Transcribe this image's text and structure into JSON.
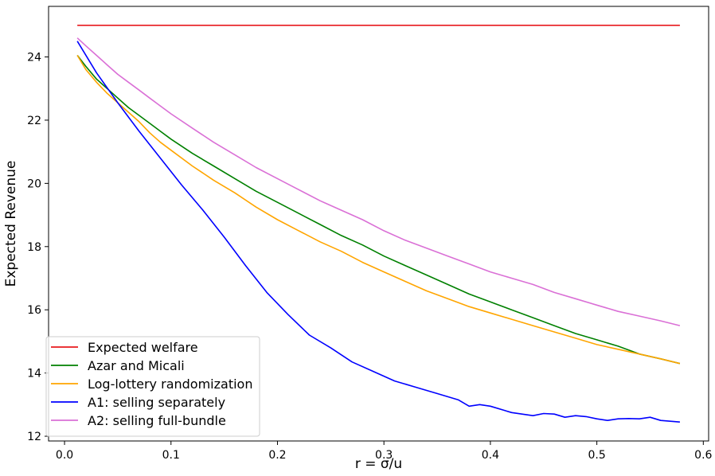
{
  "chart_data": {
    "type": "line",
    "title": "",
    "xlabel": "r = σ/u",
    "ylabel": "Expected Revenue",
    "xlim": [
      -0.015,
      0.605
    ],
    "ylim": [
      11.85,
      25.6
    ],
    "xticks": [
      0.0,
      0.1,
      0.2,
      0.3,
      0.4,
      0.5,
      0.6
    ],
    "xtick_labels": [
      "0.0",
      "0.1",
      "0.2",
      "0.3",
      "0.4",
      "0.5",
      "0.6"
    ],
    "yticks": [
      12,
      14,
      16,
      18,
      20,
      22,
      24
    ],
    "ytick_labels": [
      "12",
      "14",
      "16",
      "18",
      "20",
      "22",
      "24"
    ],
    "grid": false,
    "legend_position": "lower-left",
    "series": [
      {
        "name": "Expected welfare",
        "color": "#e8191d",
        "x": [
          0.012,
          0.578
        ],
        "y": [
          25.0,
          25.0
        ]
      },
      {
        "name": "Azar and Micali",
        "color": "#008000",
        "x": [
          0.012,
          0.02,
          0.03,
          0.04,
          0.05,
          0.06,
          0.07,
          0.08,
          0.09,
          0.1,
          0.12,
          0.14,
          0.16,
          0.18,
          0.2,
          0.22,
          0.24,
          0.26,
          0.28,
          0.3,
          0.32,
          0.34,
          0.36,
          0.38,
          0.4,
          0.42,
          0.44,
          0.46,
          0.48,
          0.5,
          0.52,
          0.54,
          0.56,
          0.578
        ],
        "y": [
          24.05,
          23.7,
          23.3,
          23.0,
          22.7,
          22.4,
          22.15,
          21.9,
          21.65,
          21.4,
          20.95,
          20.55,
          20.15,
          19.75,
          19.4,
          19.05,
          18.7,
          18.35,
          18.05,
          17.7,
          17.4,
          17.1,
          16.8,
          16.5,
          16.25,
          16.0,
          15.75,
          15.5,
          15.25,
          15.05,
          14.85,
          14.6,
          14.45,
          14.3
        ]
      },
      {
        "name": "Log-lottery randomization",
        "color": "#ffa500",
        "x": [
          0.012,
          0.02,
          0.03,
          0.04,
          0.05,
          0.06,
          0.07,
          0.08,
          0.09,
          0.1,
          0.12,
          0.14,
          0.16,
          0.18,
          0.2,
          0.22,
          0.24,
          0.26,
          0.28,
          0.3,
          0.32,
          0.34,
          0.36,
          0.38,
          0.4,
          0.42,
          0.44,
          0.46,
          0.48,
          0.5,
          0.52,
          0.54,
          0.56,
          0.578
        ],
        "y": [
          24.05,
          23.6,
          23.2,
          22.85,
          22.55,
          22.25,
          21.95,
          21.6,
          21.3,
          21.05,
          20.55,
          20.1,
          19.7,
          19.25,
          18.85,
          18.5,
          18.15,
          17.85,
          17.5,
          17.2,
          16.9,
          16.6,
          16.35,
          16.1,
          15.9,
          15.7,
          15.5,
          15.3,
          15.1,
          14.9,
          14.75,
          14.6,
          14.45,
          14.3
        ]
      },
      {
        "name": "A1: selling separately",
        "color": "#0000ff",
        "x": [
          0.012,
          0.03,
          0.05,
          0.07,
          0.09,
          0.11,
          0.13,
          0.15,
          0.17,
          0.19,
          0.21,
          0.23,
          0.25,
          0.27,
          0.29,
          0.31,
          0.33,
          0.35,
          0.37,
          0.38,
          0.39,
          0.4,
          0.42,
          0.44,
          0.45,
          0.46,
          0.47,
          0.48,
          0.49,
          0.5,
          0.51,
          0.52,
          0.53,
          0.54,
          0.55,
          0.56,
          0.578
        ],
        "y": [
          24.5,
          23.5,
          22.55,
          21.65,
          20.8,
          19.95,
          19.15,
          18.3,
          17.4,
          16.55,
          15.85,
          15.2,
          14.8,
          14.35,
          14.05,
          13.75,
          13.55,
          13.35,
          13.15,
          12.95,
          13.0,
          12.95,
          12.75,
          12.65,
          12.72,
          12.7,
          12.6,
          12.65,
          12.62,
          12.55,
          12.5,
          12.55,
          12.56,
          12.55,
          12.6,
          12.5,
          12.45
        ]
      },
      {
        "name": "A2: selling full-bundle",
        "color": "#da70d6",
        "x": [
          0.012,
          0.02,
          0.03,
          0.04,
          0.05,
          0.06,
          0.07,
          0.08,
          0.09,
          0.1,
          0.12,
          0.14,
          0.16,
          0.18,
          0.2,
          0.22,
          0.24,
          0.26,
          0.28,
          0.3,
          0.32,
          0.34,
          0.36,
          0.38,
          0.4,
          0.42,
          0.44,
          0.46,
          0.48,
          0.5,
          0.52,
          0.54,
          0.56,
          0.578
        ],
        "y": [
          24.6,
          24.35,
          24.05,
          23.75,
          23.45,
          23.2,
          22.95,
          22.7,
          22.45,
          22.2,
          21.75,
          21.3,
          20.9,
          20.5,
          20.15,
          19.8,
          19.45,
          19.15,
          18.85,
          18.5,
          18.2,
          17.95,
          17.7,
          17.45,
          17.2,
          17.0,
          16.8,
          16.55,
          16.35,
          16.15,
          15.95,
          15.8,
          15.65,
          15.5
        ]
      }
    ]
  }
}
